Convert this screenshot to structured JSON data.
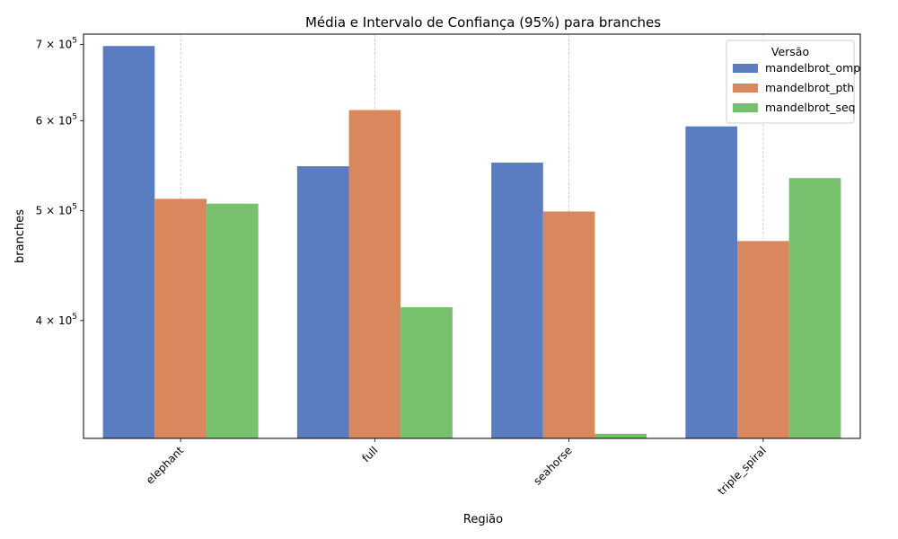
{
  "chart_data": {
    "type": "bar",
    "title": "Média e Intervalo de Confiança (95%) para branches",
    "xlabel": "Região",
    "ylabel": "branches",
    "yscale": "log",
    "ylim": [
      315000,
      715000
    ],
    "grid": "x-axis, dashed",
    "categories": [
      "elephant",
      "full",
      "seahorse",
      "triple_spiral"
    ],
    "yticks": [
      {
        "value": 400000,
        "mantissa": "4",
        "exponent": "5"
      },
      {
        "value": 500000,
        "mantissa": "5",
        "exponent": "5"
      },
      {
        "value": 600000,
        "mantissa": "6",
        "exponent": "5"
      },
      {
        "value": 700000,
        "mantissa": "7",
        "exponent": "5"
      }
    ],
    "legend": {
      "title": "Versão",
      "placement": "top-right"
    },
    "series": [
      {
        "name": "mandelbrot_omp",
        "color": "#5a7dc1",
        "values": [
          698000,
          547000,
          551000,
          593000
        ]
      },
      {
        "name": "mandelbrot_pth",
        "color": "#d8885c",
        "values": [
          512000,
          613000,
          499000,
          470000
        ]
      },
      {
        "name": "mandelbrot_seq",
        "color": "#76c06e",
        "values": [
          507000,
          411000,
          318000,
          534000
        ]
      }
    ]
  }
}
